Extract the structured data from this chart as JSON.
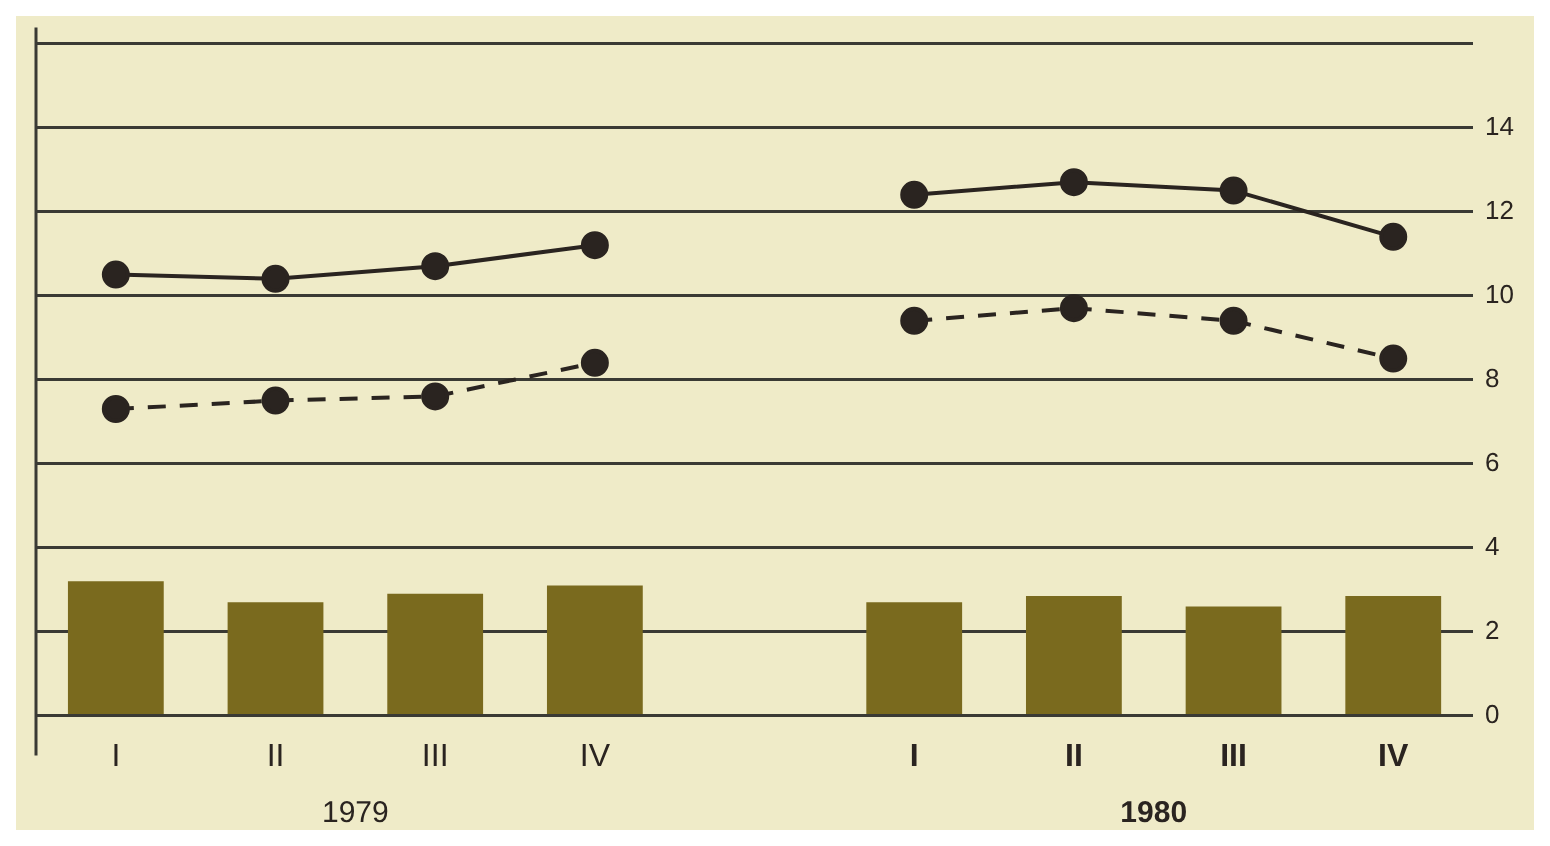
{
  "chart_data": {
    "type": "bar",
    "categories": [
      "I",
      "II",
      "III",
      "IV",
      null,
      "I",
      "II",
      "III",
      "IV"
    ],
    "series": [
      {
        "color": "#7a6a1e",
        "values": [
          3.2,
          2.7,
          2.9,
          3.1,
          null,
          2.7,
          2.85,
          2.6,
          2.85
        ]
      },
      {
        "type": "line",
        "color": "#2a2420",
        "line_style": "solid",
        "marker": "circle",
        "values": [
          10.5,
          10.4,
          10.7,
          11.2,
          null,
          12.4,
          12.7,
          12.5,
          11.4
        ]
      },
      {
        "type": "line",
        "color": "#2a2420",
        "line_style": "dashed",
        "marker": "circle",
        "values": [
          7.3,
          7.5,
          7.6,
          8.4,
          null,
          9.4,
          9.7,
          9.4,
          8.5
        ]
      }
    ],
    "ylim": [
      0,
      16
    ],
    "yticks": [
      0,
      2,
      4,
      6,
      8,
      10,
      12,
      14,
      {
        "value": 16,
        "label": null
      }
    ],
    "grid": "y",
    "legend": false,
    "annotations": [
      "1979",
      "1980"
    ]
  }
}
